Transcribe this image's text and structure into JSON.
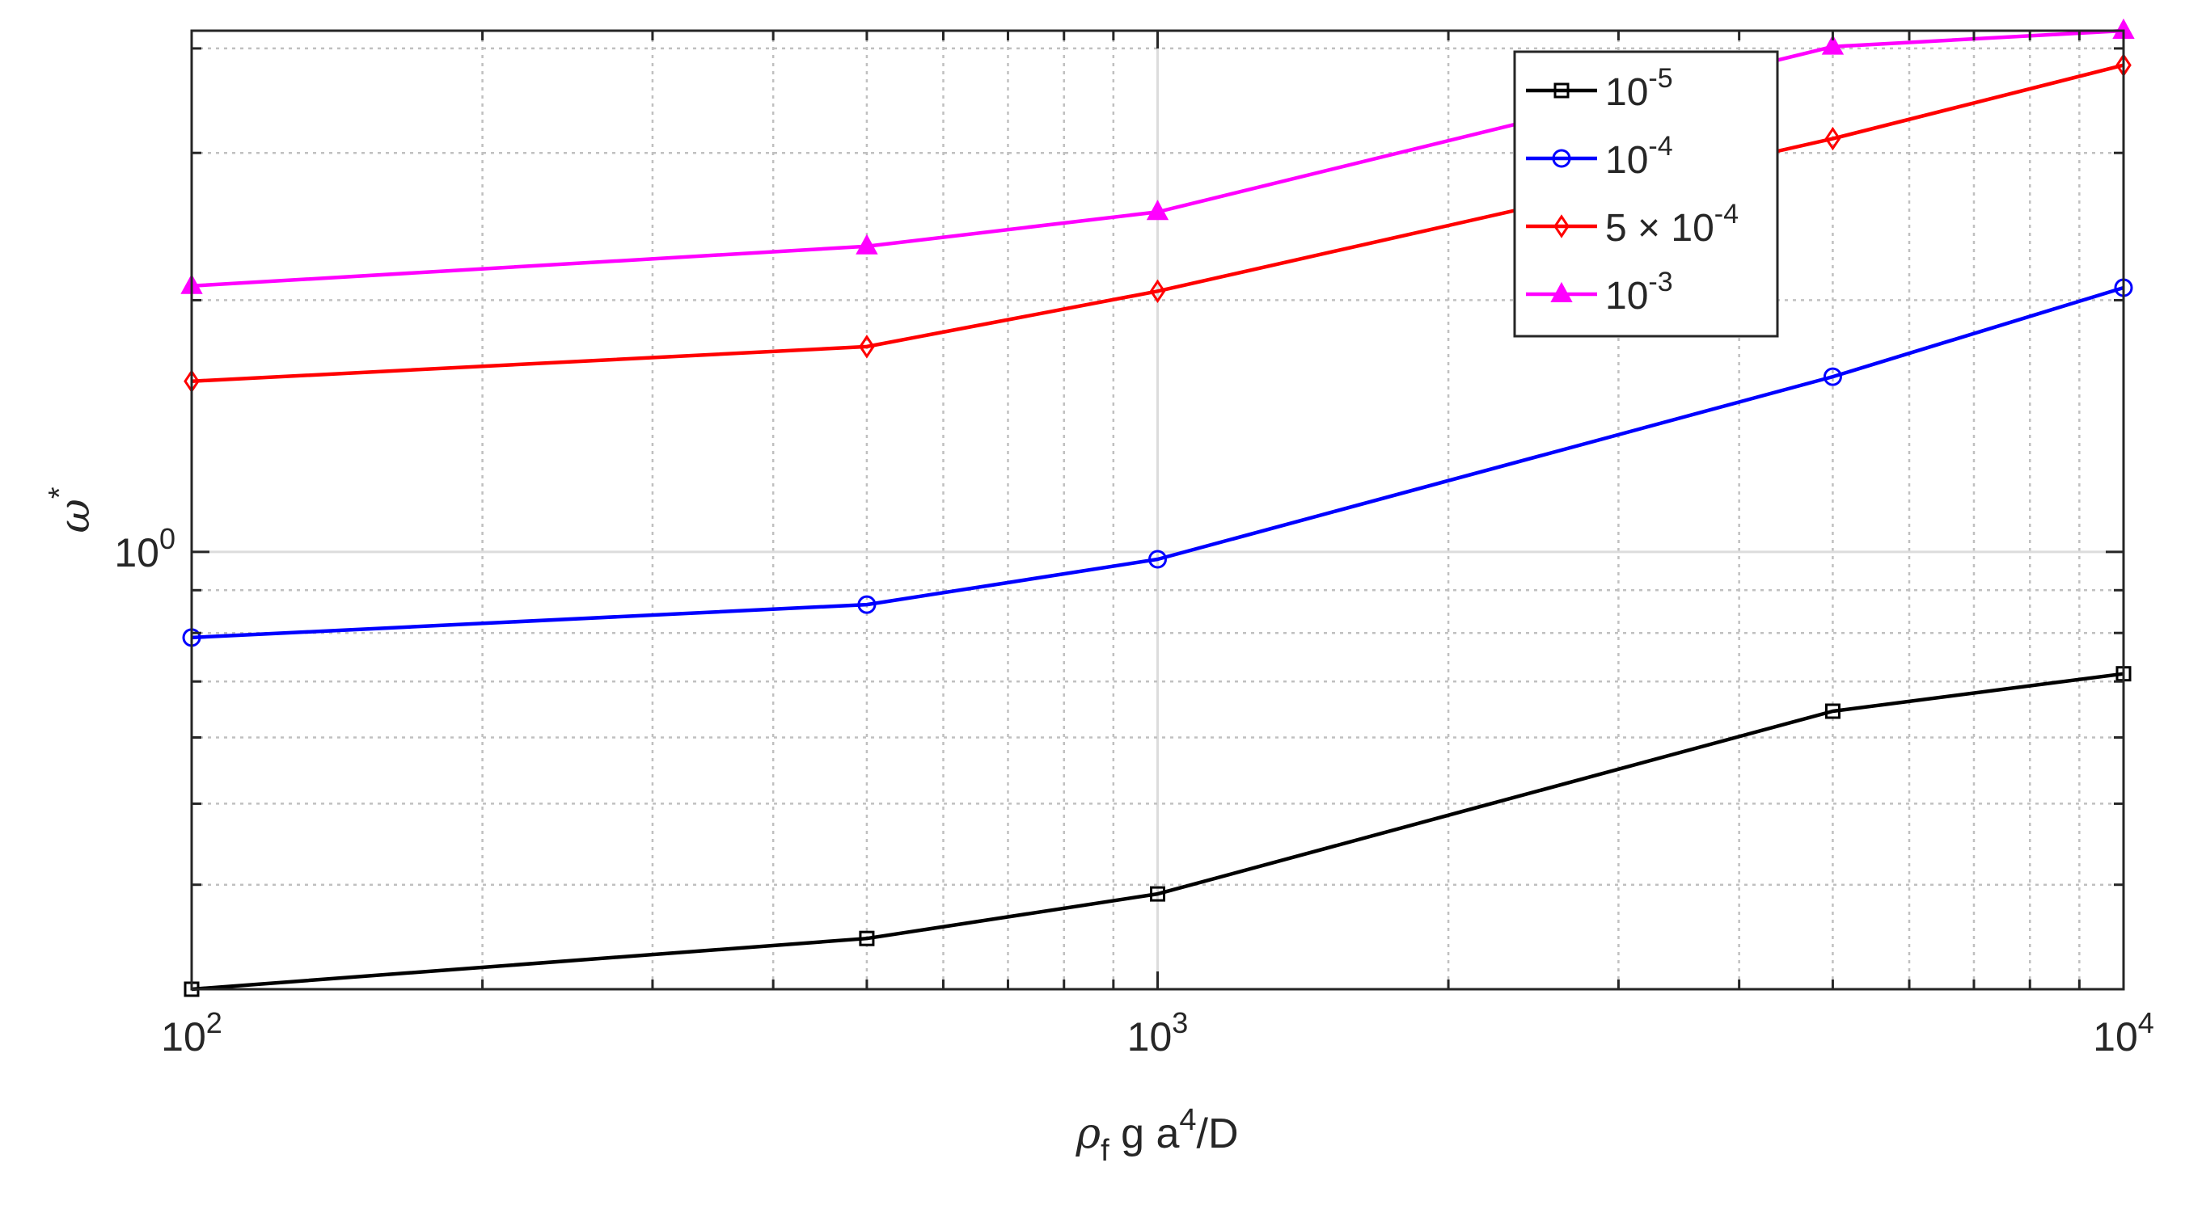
{
  "chart_data": {
    "type": "line",
    "xscale": "log",
    "yscale": "log",
    "xlim": [
      100,
      10000
    ],
    "ylim": [
      0.3,
      4.2
    ],
    "x_ticks": [
      {
        "value": 100,
        "base": "10",
        "exp": "2"
      },
      {
        "value": 1000,
        "base": "10",
        "exp": "3"
      },
      {
        "value": 10000,
        "base": "10",
        "exp": "4"
      }
    ],
    "y_ticks": [
      {
        "value": 1,
        "base": "10",
        "exp": "0"
      }
    ],
    "xlabel": {
      "rho": "ρ",
      "sub": "f",
      "mid": " g a",
      "sup": "4",
      "end": "/D"
    },
    "ylabel": {
      "main": "ω",
      "sup": "*"
    },
    "grid": true,
    "minor_grid": true,
    "legend_position": "top-right",
    "x": [
      100,
      500,
      1000,
      5000,
      10000
    ],
    "series": [
      {
        "name": "10-5",
        "label": {
          "pre": "",
          "base": "10",
          "exp": "-5"
        },
        "color": "#000000",
        "marker": "square",
        "values": [
          0.3,
          0.345,
          0.39,
          0.645,
          0.715
        ]
      },
      {
        "name": "10-4",
        "label": {
          "pre": "",
          "base": "10",
          "exp": "-4"
        },
        "color": "#0000ff",
        "marker": "circle",
        "values": [
          0.79,
          0.865,
          0.98,
          1.62,
          2.07
        ]
      },
      {
        "name": "5 × 10-4",
        "label": {
          "pre": "5 × ",
          "base": "10",
          "exp": "-4"
        },
        "color": "#ff0000",
        "marker": "diamond",
        "values": [
          1.6,
          1.76,
          2.05,
          3.12,
          3.82
        ]
      },
      {
        "name": "10-3",
        "label": {
          "pre": "",
          "base": "10",
          "exp": "-3"
        },
        "color": "#ff00ff",
        "marker": "triangle",
        "values": [
          2.08,
          2.32,
          2.55,
          4.02,
          4.2
        ]
      }
    ]
  }
}
